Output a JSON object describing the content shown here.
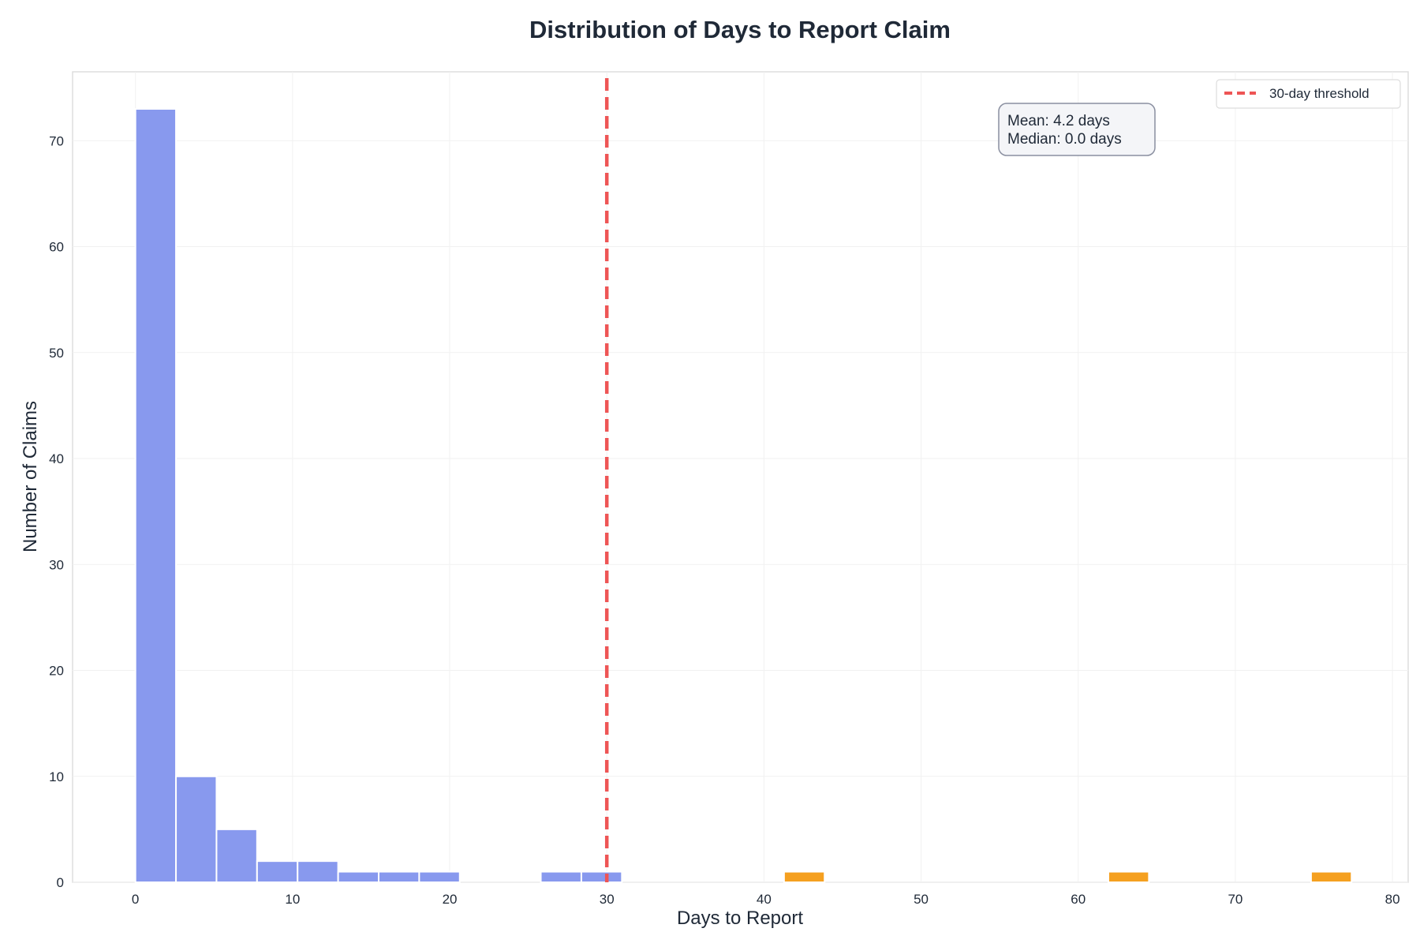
{
  "chart_data": {
    "type": "bar",
    "title": "Distribution of Days to Report Claim",
    "xlabel": "Days to Report",
    "ylabel": "Number of Claims",
    "xlim": [
      -4,
      81
    ],
    "ylim": [
      0,
      76.5
    ],
    "x_ticks": [
      0,
      10,
      20,
      30,
      40,
      50,
      60,
      70,
      80
    ],
    "y_ticks": [
      0,
      10,
      20,
      30,
      40,
      50,
      60,
      70
    ],
    "grid": true,
    "bin_width": 2.58,
    "bins": [
      {
        "start": 0.0,
        "count": 73,
        "color": "#8899ee"
      },
      {
        "start": 2.58,
        "count": 10,
        "color": "#8899ee"
      },
      {
        "start": 5.16,
        "count": 5,
        "color": "#8899ee"
      },
      {
        "start": 7.74,
        "count": 2,
        "color": "#8899ee"
      },
      {
        "start": 10.32,
        "count": 2,
        "color": "#8899ee"
      },
      {
        "start": 12.9,
        "count": 1,
        "color": "#8899ee"
      },
      {
        "start": 15.48,
        "count": 1,
        "color": "#8899ee"
      },
      {
        "start": 18.06,
        "count": 1,
        "color": "#8899ee"
      },
      {
        "start": 25.8,
        "count": 1,
        "color": "#8899ee"
      },
      {
        "start": 28.38,
        "count": 1,
        "color": "#8899ee"
      },
      {
        "start": 41.28,
        "count": 1,
        "color": "#f5a020"
      },
      {
        "start": 61.92,
        "count": 1,
        "color": "#f5a020"
      },
      {
        "start": 74.82,
        "count": 1,
        "color": "#f5a020"
      }
    ],
    "threshold": {
      "x": 30,
      "label": "30-day threshold",
      "color": "#ee5555"
    },
    "stats_lines": [
      "Mean: 4.2 days",
      "Median: 0.0 days"
    ],
    "legend_position": "top-right"
  }
}
